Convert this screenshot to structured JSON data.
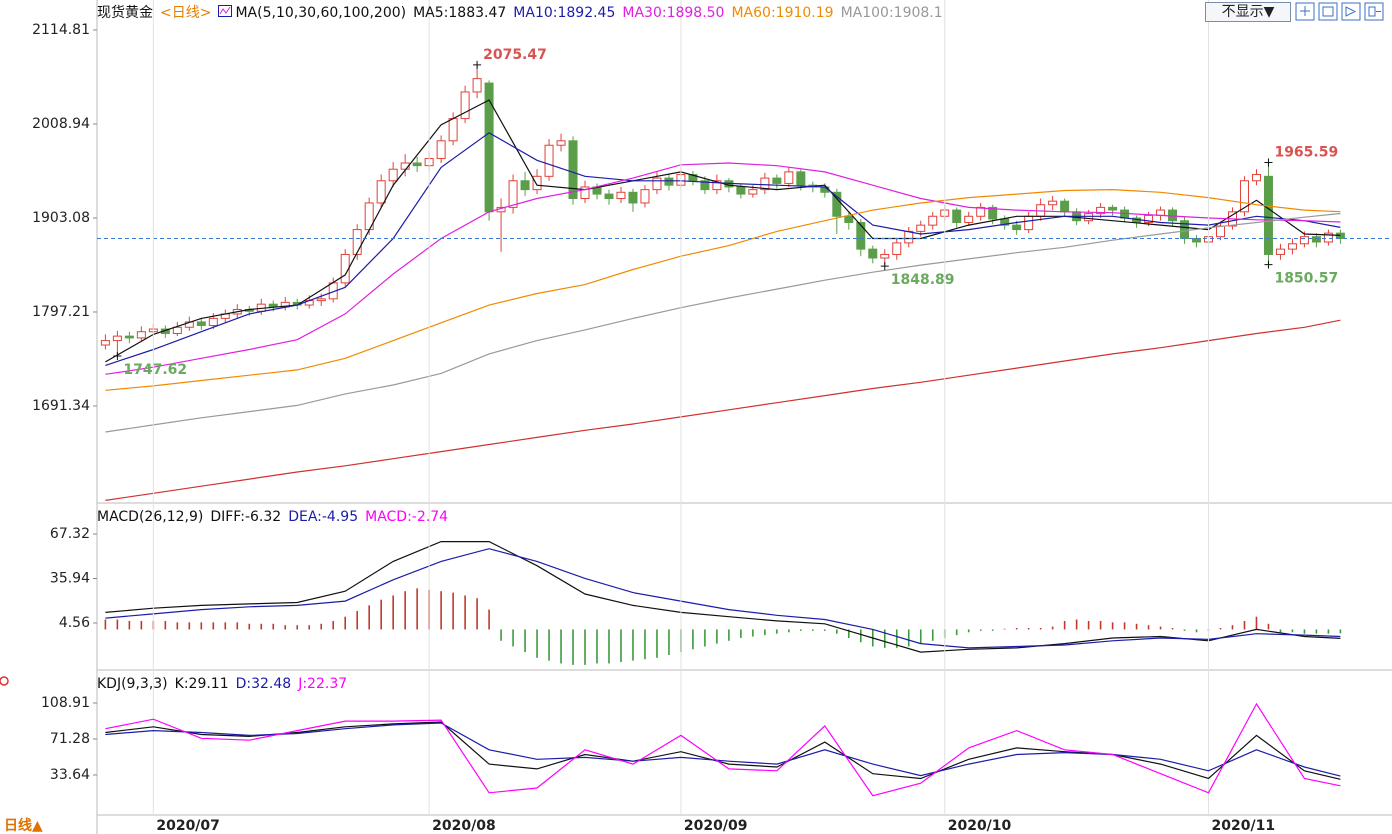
{
  "ui": {
    "hide_button": "不显示▼",
    "period_button": "日线▲"
  },
  "chart_data": [
    {
      "type": "candlestick",
      "title": "现货黄金",
      "period": "<日线>",
      "indicator": "MA(5,10,30,60,100,200)",
      "up_color": "#e0413a",
      "down_color": "#5b9e4a",
      "last_price_line": true,
      "xlim": [
        -0.7,
        103.8
      ],
      "ylim": [
        1583.2,
        2128.3
      ],
      "yticks": [
        2114.81,
        2008.94,
        1903.08,
        1797.21,
        1691.34
      ],
      "candles": [
        [
          1760,
          1772,
          1755,
          1765
        ],
        [
          1765,
          1776,
          1747.62,
          1770
        ],
        [
          1770,
          1775,
          1762,
          1768
        ],
        [
          1768,
          1781,
          1764,
          1775
        ],
        [
          1775,
          1784,
          1770,
          1778
        ],
        [
          1778,
          1782,
          1768,
          1773
        ],
        [
          1773,
          1786,
          1770,
          1780
        ],
        [
          1780,
          1792,
          1776,
          1786
        ],
        [
          1786,
          1790,
          1777,
          1782
        ],
        [
          1782,
          1796,
          1778,
          1790
        ],
        [
          1790,
          1800,
          1785,
          1795
        ],
        [
          1795,
          1806,
          1790,
          1800
        ],
        [
          1800,
          1804,
          1793,
          1798
        ],
        [
          1798,
          1812,
          1794,
          1806
        ],
        [
          1806,
          1810,
          1798,
          1803
        ],
        [
          1803,
          1814,
          1799,
          1808
        ],
        [
          1808,
          1812,
          1800,
          1805
        ],
        [
          1805,
          1816,
          1801,
          1810
        ],
        [
          1810,
          1818,
          1804,
          1812
        ],
        [
          1812,
          1836,
          1808,
          1830
        ],
        [
          1830,
          1868,
          1826,
          1862
        ],
        [
          1862,
          1896,
          1856,
          1890
        ],
        [
          1890,
          1926,
          1884,
          1920
        ],
        [
          1920,
          1952,
          1914,
          1945
        ],
        [
          1945,
          1966,
          1938,
          1958
        ],
        [
          1958,
          1975,
          1950,
          1965
        ],
        [
          1965,
          1972,
          1955,
          1962
        ],
        [
          1962,
          1978,
          1956,
          1970
        ],
        [
          1970,
          1996,
          1965,
          1990
        ],
        [
          1990,
          2022,
          1985,
          2015
        ],
        [
          2015,
          2052,
          2010,
          2045
        ],
        [
          2045,
          2075.47,
          2038,
          2060
        ],
        [
          2055,
          2058,
          1900,
          1910
        ],
        [
          1910,
          1925,
          1865,
          1915
        ],
        [
          1915,
          1952,
          1908,
          1945
        ],
        [
          1945,
          1955,
          1928,
          1935
        ],
        [
          1935,
          1958,
          1930,
          1950
        ],
        [
          1950,
          1992,
          1945,
          1985
        ],
        [
          1985,
          1998,
          1978,
          1990
        ],
        [
          1990,
          1995,
          1918,
          1925
        ],
        [
          1925,
          1945,
          1920,
          1938
        ],
        [
          1938,
          1942,
          1924,
          1930
        ],
        [
          1930,
          1935,
          1918,
          1925
        ],
        [
          1925,
          1938,
          1920,
          1932
        ],
        [
          1932,
          1936,
          1910,
          1920
        ],
        [
          1920,
          1940,
          1915,
          1935
        ],
        [
          1935,
          1955,
          1930,
          1948
        ],
        [
          1948,
          1952,
          1934,
          1940
        ],
        [
          1940,
          1960,
          1936,
          1952
        ],
        [
          1952,
          1956,
          1940,
          1945
        ],
        [
          1945,
          1950,
          1930,
          1935
        ],
        [
          1935,
          1952,
          1930,
          1945
        ],
        [
          1945,
          1948,
          1932,
          1938
        ],
        [
          1938,
          1942,
          1925,
          1930
        ],
        [
          1930,
          1940,
          1926,
          1935
        ],
        [
          1935,
          1954,
          1930,
          1948
        ],
        [
          1948,
          1952,
          1936,
          1942
        ],
        [
          1942,
          1960,
          1938,
          1955
        ],
        [
          1955,
          1958,
          1934,
          1940
        ],
        [
          1940,
          1944,
          1932,
          1938
        ],
        [
          1938,
          1942,
          1926,
          1932
        ],
        [
          1932,
          1936,
          1885,
          1905
        ],
        [
          1905,
          1910,
          1890,
          1898
        ],
        [
          1898,
          1902,
          1860,
          1868
        ],
        [
          1868,
          1872,
          1852,
          1858
        ],
        [
          1858,
          1868,
          1848.89,
          1862
        ],
        [
          1862,
          1880,
          1856,
          1875
        ],
        [
          1875,
          1893,
          1870,
          1888
        ],
        [
          1888,
          1900,
          1882,
          1895
        ],
        [
          1895,
          1910,
          1890,
          1905
        ],
        [
          1905,
          1918,
          1900,
          1912
        ],
        [
          1912,
          1915,
          1892,
          1898
        ],
        [
          1898,
          1910,
          1894,
          1905
        ],
        [
          1905,
          1920,
          1900,
          1915
        ],
        [
          1915,
          1918,
          1896,
          1902
        ],
        [
          1902,
          1906,
          1890,
          1895
        ],
        [
          1895,
          1900,
          1884,
          1890
        ],
        [
          1890,
          1910,
          1886,
          1905
        ],
        [
          1905,
          1925,
          1900,
          1918
        ],
        [
          1918,
          1928,
          1912,
          1922
        ],
        [
          1922,
          1925,
          1904,
          1910
        ],
        [
          1910,
          1914,
          1895,
          1900
        ],
        [
          1900,
          1912,
          1896,
          1908
        ],
        [
          1908,
          1920,
          1903,
          1915
        ],
        [
          1915,
          1918,
          1906,
          1912
        ],
        [
          1912,
          1916,
          1898,
          1903
        ],
        [
          1903,
          1906,
          1892,
          1898
        ],
        [
          1898,
          1910,
          1894,
          1906
        ],
        [
          1906,
          1916,
          1900,
          1912
        ],
        [
          1912,
          1915,
          1894,
          1900
        ],
        [
          1900,
          1904,
          1874,
          1880
        ],
        [
          1880,
          1884,
          1870,
          1876
        ],
        [
          1876,
          1888,
          1872,
          1882
        ],
        [
          1882,
          1898,
          1878,
          1894
        ],
        [
          1894,
          1915,
          1890,
          1910
        ],
        [
          1910,
          1950,
          1905,
          1945
        ],
        [
          1945,
          1958,
          1940,
          1952
        ],
        [
          1950,
          1965.59,
          1850.57,
          1862
        ],
        [
          1862,
          1874,
          1856,
          1868
        ],
        [
          1868,
          1880,
          1862,
          1874
        ],
        [
          1874,
          1888,
          1870,
          1882
        ],
        [
          1882,
          1886,
          1870,
          1876
        ],
        [
          1876,
          1890,
          1872,
          1886
        ],
        [
          1886,
          1890,
          1874,
          1880
        ]
      ],
      "annotations": [
        {
          "x": 31,
          "y": 2075.47
        },
        {
          "x": 97,
          "y": 1965.59
        },
        {
          "x": 65,
          "y": 1848.89
        },
        {
          "x": 97,
          "y": 1850.57
        },
        {
          "x": 1,
          "y": 1747.62
        }
      ],
      "x": [
        0,
        4,
        8,
        12,
        16,
        20,
        24,
        28,
        32,
        36,
        40,
        44,
        48,
        52,
        56,
        60,
        64,
        68,
        72,
        76,
        80,
        84,
        88,
        92,
        96,
        100,
        103
      ],
      "series": [
        {
          "name": "MA5:1883.47",
          "color": "#111111",
          "values": [
            1741,
            1772,
            1790,
            1800,
            1805,
            1839,
            1940,
            2008,
            2036,
            1940,
            1935,
            1945,
            1955,
            1940,
            1935,
            1940,
            1880,
            1880,
            1895,
            1905,
            1905,
            1900,
            1895,
            1890,
            1923,
            1885,
            1883.47
          ]
        },
        {
          "name": "MA10:1892.45",
          "color": "#1c1caa",
          "values": [
            1737,
            1755,
            1775,
            1795,
            1805,
            1825,
            1880,
            1960,
            1999,
            1968,
            1950,
            1945,
            1945,
            1942,
            1940,
            1938,
            1895,
            1885,
            1890,
            1898,
            1905,
            1905,
            1898,
            1895,
            1905,
            1900,
            1892.45
          ]
        },
        {
          "name": "MA30:1898.50",
          "color": "#e020e0",
          "values": [
            1727,
            1735,
            1745,
            1755,
            1766,
            1795,
            1840,
            1880,
            1910,
            1925,
            1935,
            1948,
            1963,
            1965,
            1962,
            1955,
            1940,
            1925,
            1915,
            1912,
            1910,
            1909,
            1906,
            1903,
            1901,
            1900,
            1898.5
          ]
        },
        {
          "name": "MA60:1910.19",
          "color": "#f08a00",
          "values": [
            1709,
            1714,
            1720,
            1726,
            1732,
            1745,
            1765,
            1785,
            1805,
            1818,
            1828,
            1845,
            1860,
            1872,
            1888,
            1900,
            1912,
            1920,
            1926,
            1930,
            1934,
            1935,
            1932,
            1926,
            1918,
            1912,
            1910.19
          ]
        },
        {
          "name": "MA100:1908.1",
          "color": "#999999",
          "values": [
            1662,
            1670,
            1678,
            1685,
            1692,
            1705,
            1715,
            1728,
            1750,
            1765,
            1777,
            1790,
            1802,
            1813,
            1823,
            1833,
            1842,
            1850,
            1857,
            1864,
            1870,
            1878,
            1885,
            1892,
            1898,
            1904,
            1908.1
          ]
        },
        {
          "color": "#d03030",
          "values": [
            1585,
            1593,
            1601,
            1609,
            1617,
            1624,
            1632,
            1640,
            1648,
            1656,
            1664,
            1671,
            1679,
            1687,
            1695,
            1703,
            1711,
            1718,
            1726,
            1734,
            1742,
            1750,
            1757,
            1765,
            1773,
            1780,
            1788
          ]
        }
      ]
    },
    {
      "type": "macd",
      "title": "MACD(26,12,9)",
      "xlim": [
        -0.7,
        103.8
      ],
      "ylim": [
        -27.2,
        87.1
      ],
      "yticks": [
        67.32,
        35.94,
        4.56
      ],
      "x": [
        0,
        4,
        8,
        12,
        16,
        20,
        24,
        28,
        32,
        36,
        40,
        44,
        48,
        52,
        56,
        60,
        64,
        68,
        72,
        76,
        80,
        84,
        88,
        92,
        96,
        100,
        103
      ],
      "series": [
        {
          "name": "DIFF:-6.32",
          "color": "#111111",
          "values": [
            12,
            15,
            17,
            18,
            19,
            27,
            48,
            62,
            62,
            45,
            25,
            17,
            12,
            9,
            6,
            4,
            -6,
            -16,
            -14,
            -13,
            -10,
            -6,
            -5,
            -8,
            0,
            -5,
            -6.32
          ]
        },
        {
          "name": "DEA:-4.95",
          "color": "#1c1caa",
          "values": [
            8,
            11,
            14,
            16,
            17,
            20,
            35,
            48,
            57,
            48,
            36,
            26,
            20,
            14,
            10,
            7,
            0,
            -10,
            -13,
            -12,
            -11,
            -8,
            -6,
            -7,
            -3,
            -4,
            -4.95
          ]
        }
      ],
      "histogram": {
        "name": "MACD:-2.74",
        "color": "#ff00ff",
        "up_color": "#c0392b",
        "down_color": "#3c9a3c",
        "values": [
          7,
          7,
          6,
          6,
          6,
          6,
          5,
          5,
          5,
          5,
          5,
          5,
          4,
          4,
          4,
          3,
          3,
          3,
          4,
          6,
          9,
          13,
          17,
          21,
          24,
          27,
          29,
          28,
          27,
          26,
          24,
          22,
          14,
          -8,
          -12,
          -16,
          -20,
          -22,
          -24,
          -25,
          -25,
          -24,
          -24,
          -23,
          -22,
          -21,
          -20,
          -18,
          -16,
          -14,
          -12,
          -10,
          -8,
          -6,
          -5,
          -4,
          -3,
          -2,
          -1,
          -1,
          -1,
          -3,
          -6,
          -9,
          -12,
          -13,
          -13,
          -12,
          -10,
          -8,
          -6,
          -4,
          -2,
          -1,
          -1,
          0.5,
          1,
          1,
          1,
          2,
          6,
          7,
          6,
          6,
          5,
          5,
          4,
          3,
          2,
          1,
          -1,
          -2,
          -1,
          1,
          3,
          6,
          9,
          4,
          -2,
          -2,
          -3,
          -3,
          -3,
          -2.74
        ]
      }
    },
    {
      "type": "kdj",
      "title": "KDJ(9,3,3)",
      "xlim": [
        -0.7,
        103.8
      ],
      "ylim": [
        -8.2,
        141.3
      ],
      "yticks": [
        108.91,
        71.28,
        33.64
      ],
      "xticks": [
        {
          "value": 4,
          "label": "2020/07"
        },
        {
          "value": 27,
          "label": "2020/08"
        },
        {
          "value": 48,
          "label": "2020/09"
        },
        {
          "value": 70,
          "label": "2020/10"
        },
        {
          "value": 92,
          "label": "2020/11"
        }
      ],
      "x": [
        0,
        4,
        8,
        12,
        16,
        20,
        24,
        28,
        32,
        36,
        40,
        44,
        48,
        52,
        56,
        60,
        64,
        68,
        72,
        76,
        80,
        84,
        88,
        92,
        96,
        100,
        103
      ],
      "series": [
        {
          "name": "K:29.11",
          "color": "#111111",
          "values": [
            78,
            84,
            76,
            74,
            78,
            84,
            87,
            89,
            45,
            40,
            55,
            48,
            58,
            45,
            42,
            68,
            35,
            30,
            50,
            62,
            58,
            55,
            45,
            30,
            75,
            38,
            29.11
          ]
        },
        {
          "name": "D:32.48",
          "color": "#1c1caa",
          "values": [
            76,
            80,
            78,
            75,
            77,
            82,
            86,
            88,
            60,
            50,
            52,
            48,
            52,
            48,
            45,
            60,
            45,
            33,
            45,
            55,
            57,
            55,
            50,
            38,
            60,
            42,
            32.48
          ]
        },
        {
          "name": "J:22.37",
          "color": "#ff00ff",
          "values": [
            82,
            92,
            72,
            70,
            80,
            90,
            90,
            91,
            15,
            20,
            60,
            45,
            75,
            40,
            38,
            85,
            12,
            25,
            62,
            80,
            60,
            55,
            35,
            15,
            108,
            30,
            22.37
          ]
        }
      ]
    }
  ]
}
